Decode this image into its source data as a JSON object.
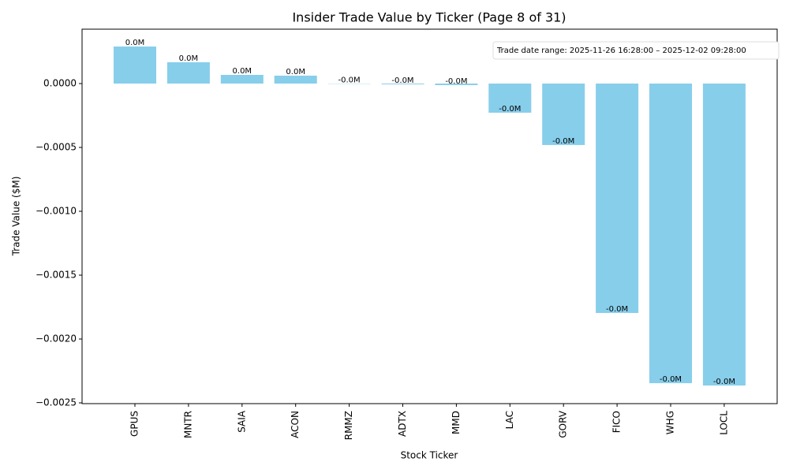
{
  "chart_data": {
    "type": "bar",
    "title": "Insider Trade Value by Ticker (Page 8 of 31)",
    "x_label": "Stock Ticker",
    "y_label": "Trade Value ($M)",
    "annotation": "Trade date range: 2025-11-26 16:28:00 – 2025-12-02 09:28:00",
    "categories": [
      "GPUS",
      "MNTR",
      "SAIA",
      "ACON",
      "RMMZ",
      "ADTX",
      "MMD",
      "LAC",
      "GORV",
      "FICO",
      "WHG",
      "LOCL"
    ],
    "values": [
      0.00029,
      0.000167,
      6.8e-05,
      6.2e-05,
      -2e-06,
      -6e-06,
      -1.2e-05,
      -0.000228,
      -0.000481,
      -0.001796,
      -0.002346,
      -0.002364
    ],
    "value_labels": [
      "0.0M",
      "0.0M",
      "0.0M",
      "0.0M",
      "-0.0M",
      "-0.0M",
      "-0.0M",
      "-0.0M",
      "-0.0M",
      "-0.0M",
      "-0.0M",
      "-0.0M"
    ],
    "color": "#87ceeb",
    "ylim": [
      -0.002506,
      0.000426
    ],
    "yticks": [
      {
        "value": -0.0025,
        "label": "−0.0025"
      },
      {
        "value": -0.002,
        "label": "−0.0020"
      },
      {
        "value": -0.0015,
        "label": "−0.0015"
      },
      {
        "value": -0.001,
        "label": "−0.0010"
      },
      {
        "value": -0.0005,
        "label": "−0.0005"
      },
      {
        "value": 0,
        "label": "0.0000"
      }
    ],
    "grid": false
  }
}
